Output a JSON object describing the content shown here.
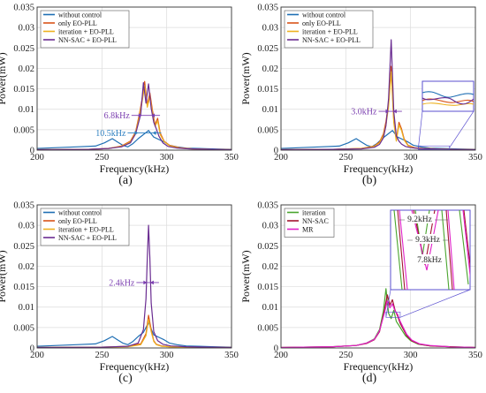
{
  "colors": {
    "without_control": "#1f6fb4",
    "only_eo_pll": "#d95319",
    "iteration_eo_pll": "#edb120",
    "nn_sac_eo_pll": "#6a2c91",
    "iteration": "#4aa52e",
    "nn_sac": "#a2142f",
    "mr": "#e020c8",
    "annotation_purple": "#7b3fb0",
    "annotation_blue": "#2c7fc0",
    "inset_frame": "#5a4fcf"
  },
  "chart_data": [
    {
      "type": "line",
      "panel_label": "(a)",
      "xlabel": "Frequency(kHz)",
      "ylabel": "Power(mW)",
      "xlim": [
        200,
        350
      ],
      "ylim": [
        0,
        0.035
      ],
      "x_ticks": [
        "200",
        "250",
        "300",
        "350"
      ],
      "y_ticks": [
        "0",
        "0.005",
        "0.01",
        "0.015",
        "0.02",
        "0.025",
        "0.03",
        "0.035"
      ],
      "grid": true,
      "legend_position": "top-left",
      "series": [
        {
          "name": "without control",
          "color_key": "without_control",
          "x": [
            200,
            215,
            230,
            245,
            252,
            258,
            262,
            266,
            270,
            274,
            278,
            282,
            286,
            290,
            294,
            298,
            302,
            308,
            315,
            325,
            335,
            350
          ],
          "y": [
            0.0004,
            0.0006,
            0.0008,
            0.001,
            0.0018,
            0.0028,
            0.002,
            0.0012,
            0.0008,
            0.0016,
            0.0028,
            0.0038,
            0.0048,
            0.0032,
            0.0026,
            0.002,
            0.0012,
            0.0008,
            0.0005,
            0.0004,
            0.0003,
            0.0002
          ]
        },
        {
          "name": "only EO-PLL",
          "color_key": "only_eo_pll",
          "x": [
            200,
            240,
            255,
            265,
            272,
            276,
            279,
            281,
            283,
            285,
            287,
            289,
            291,
            293,
            295,
            298,
            302,
            310,
            320,
            335,
            350
          ],
          "y": [
            0.0001,
            0.0002,
            0.0004,
            0.001,
            0.0022,
            0.0045,
            0.009,
            0.0125,
            0.0168,
            0.011,
            0.014,
            0.0098,
            0.0062,
            0.0078,
            0.0042,
            0.0022,
            0.0012,
            0.0006,
            0.0003,
            0.0002,
            0.0001
          ]
        },
        {
          "name": "iteration + EO-PLL",
          "color_key": "iteration_eo_pll",
          "x": [
            200,
            240,
            255,
            265,
            272,
            276,
            279,
            281,
            283,
            285,
            287,
            289,
            291,
            293,
            295,
            298,
            302,
            310,
            320,
            335,
            350
          ],
          "y": [
            0.0001,
            0.0002,
            0.0004,
            0.0009,
            0.002,
            0.0042,
            0.0085,
            0.0118,
            0.0158,
            0.0105,
            0.013,
            0.0092,
            0.0058,
            0.0072,
            0.0038,
            0.0021,
            0.0011,
            0.0005,
            0.0003,
            0.0002,
            0.0001
          ]
        },
        {
          "name": "NN-SAC + EO-PLL",
          "color_key": "nn_sac_eo_pll",
          "x": [
            200,
            240,
            255,
            265,
            272,
            276,
            280,
            282,
            284,
            286,
            288,
            290,
            292,
            294,
            297,
            301,
            308,
            318,
            335,
            350
          ],
          "y": [
            0.0001,
            0.0002,
            0.0004,
            0.0008,
            0.0018,
            0.004,
            0.0088,
            0.0165,
            0.0115,
            0.0162,
            0.0102,
            0.0068,
            0.0052,
            0.0034,
            0.0018,
            0.0009,
            0.0005,
            0.0003,
            0.0002,
            0.0001
          ]
        }
      ],
      "annotations": [
        {
          "text": "6.8kHz",
          "color_key": "annotation_purple",
          "x1": 281,
          "x2": 288,
          "y": 0.0085
        },
        {
          "text": "10.5kHz",
          "color_key": "annotation_blue",
          "x1": 278,
          "x2": 289,
          "y": 0.0042
        }
      ]
    },
    {
      "type": "line",
      "panel_label": "(b)",
      "xlabel": "Frequency(kHz)",
      "ylabel": "Power(mW)",
      "xlim": [
        200,
        350
      ],
      "ylim": [
        0,
        0.035
      ],
      "x_ticks": [
        "200",
        "250",
        "300",
        "350"
      ],
      "y_ticks": [
        "0",
        "0.005",
        "0.01",
        "0.015",
        "0.02",
        "0.025",
        "0.03",
        "0.035"
      ],
      "grid": true,
      "legend_position": "top-left",
      "series": [
        {
          "name": "without control",
          "color_key": "without_control",
          "x": [
            200,
            215,
            230,
            245,
            252,
            258,
            262,
            266,
            270,
            274,
            278,
            282,
            286,
            290,
            294,
            298,
            302,
            308,
            315,
            325,
            335,
            350
          ],
          "y": [
            0.0004,
            0.0006,
            0.0008,
            0.001,
            0.0018,
            0.0028,
            0.002,
            0.0012,
            0.0008,
            0.0016,
            0.0028,
            0.0038,
            0.0048,
            0.0032,
            0.0026,
            0.002,
            0.0012,
            0.0008,
            0.0005,
            0.0004,
            0.0003,
            0.0002
          ]
        },
        {
          "name": "only EO-PLL",
          "color_key": "only_eo_pll",
          "x": [
            200,
            240,
            262,
            272,
            276,
            279,
            281,
            283,
            285,
            287,
            289,
            291,
            293,
            295,
            298,
            303,
            310,
            320,
            335,
            350
          ],
          "y": [
            0.0001,
            0.0002,
            0.0004,
            0.001,
            0.002,
            0.004,
            0.007,
            0.0115,
            0.0205,
            0.0075,
            0.0025,
            0.0068,
            0.0052,
            0.0028,
            0.0012,
            0.0006,
            0.0004,
            0.0003,
            0.0002,
            0.0001
          ]
        },
        {
          "name": "iteration + EO-PLL",
          "color_key": "iteration_eo_pll",
          "x": [
            200,
            240,
            262,
            272,
            276,
            279,
            281,
            283,
            285,
            287,
            289,
            291,
            293,
            295,
            298,
            303,
            310,
            320,
            335,
            350
          ],
          "y": [
            0.0001,
            0.0002,
            0.0004,
            0.0009,
            0.0018,
            0.0036,
            0.0062,
            0.0105,
            0.0192,
            0.0068,
            0.0022,
            0.0062,
            0.0048,
            0.0025,
            0.0011,
            0.0005,
            0.0004,
            0.0003,
            0.0002,
            0.0001
          ]
        },
        {
          "name": "NN-SAC + EO-PLL",
          "color_key": "nn_sac_eo_pll",
          "x": [
            200,
            240,
            262,
            272,
            276,
            279,
            281,
            283,
            285,
            287,
            289,
            291,
            293,
            296,
            300,
            306,
            315,
            330,
            350
          ],
          "y": [
            0.0001,
            0.0002,
            0.0003,
            0.0007,
            0.0014,
            0.003,
            0.006,
            0.0125,
            0.027,
            0.0095,
            0.0035,
            0.0022,
            0.0015,
            0.0009,
            0.0006,
            0.0004,
            0.0003,
            0.0002,
            0.0001
          ]
        }
      ],
      "annotations": [
        {
          "text": "3.0kHz",
          "color_key": "annotation_purple",
          "x1": 283.5,
          "x2": 286.5,
          "y": 0.0095
        }
      ]
    },
    {
      "type": "line",
      "panel_label": "(c)",
      "xlabel": "Frequency(kHz)",
      "ylabel": "Power(mW)",
      "xlim": [
        200,
        350
      ],
      "ylim": [
        0,
        0.035
      ],
      "x_ticks": [
        "200",
        "250",
        "300",
        "350"
      ],
      "y_ticks": [
        "0",
        "0.005",
        "0.01",
        "0.015",
        "0.02",
        "0.025",
        "0.03",
        "0.035"
      ],
      "grid": true,
      "legend_position": "top-left",
      "series": [
        {
          "name": "without control",
          "color_key": "without_control",
          "x": [
            200,
            215,
            230,
            245,
            252,
            258,
            262,
            266,
            270,
            274,
            278,
            282,
            286,
            290,
            294,
            298,
            302,
            308,
            315,
            325,
            335,
            350
          ],
          "y": [
            0.0004,
            0.0006,
            0.0008,
            0.001,
            0.0018,
            0.0028,
            0.002,
            0.0012,
            0.0008,
            0.0016,
            0.0028,
            0.0038,
            0.0062,
            0.0032,
            0.0026,
            0.002,
            0.0012,
            0.0008,
            0.0005,
            0.0004,
            0.0003,
            0.0002
          ]
        },
        {
          "name": "only EO-PLL",
          "color_key": "only_eo_pll",
          "x": [
            200,
            250,
            270,
            280,
            284,
            286,
            288,
            290,
            292,
            296,
            302,
            315,
            350
          ],
          "y": [
            0.0001,
            0.0002,
            0.0004,
            0.001,
            0.0035,
            0.008,
            0.0045,
            0.0018,
            0.0009,
            0.0005,
            0.0003,
            0.0002,
            0.0001
          ]
        },
        {
          "name": "iteration + EO-PLL",
          "color_key": "iteration_eo_pll",
          "x": [
            200,
            250,
            270,
            280,
            284,
            286,
            288,
            290,
            292,
            296,
            302,
            315,
            350
          ],
          "y": [
            0.0001,
            0.0002,
            0.0003,
            0.0008,
            0.003,
            0.007,
            0.004,
            0.0016,
            0.0008,
            0.0004,
            0.0003,
            0.0002,
            0.0001
          ]
        },
        {
          "name": "NN-SAC + EO-PLL",
          "color_key": "nn_sac_eo_pll",
          "x": [
            200,
            250,
            270,
            278,
            282,
            284,
            285,
            286,
            287,
            288,
            290,
            293,
            297,
            303,
            315,
            335,
            350
          ],
          "y": [
            0.0001,
            0.0002,
            0.0004,
            0.0012,
            0.0045,
            0.012,
            0.022,
            0.03,
            0.022,
            0.011,
            0.004,
            0.0018,
            0.0009,
            0.0005,
            0.0003,
            0.0002,
            0.0001
          ]
        }
      ],
      "annotations": [
        {
          "text": "2.4kHz",
          "color_key": "annotation_purple",
          "x1": 284.8,
          "x2": 287.2,
          "y": 0.016
        }
      ]
    },
    {
      "type": "line",
      "panel_label": "(d)",
      "xlabel": "Frequency(kHz)",
      "ylabel": "Power(mW)",
      "xlim": [
        200,
        350
      ],
      "ylim": [
        0,
        0.035
      ],
      "x_ticks": [
        "200",
        "250",
        "300",
        "350"
      ],
      "y_ticks": [
        "0",
        "0.005",
        "0.01",
        "0.015",
        "0.02",
        "0.025",
        "0.03",
        "0.035"
      ],
      "grid": true,
      "legend_position": "top-left",
      "series": [
        {
          "name": "iteration",
          "color_key": "iteration",
          "x": [
            200,
            240,
            258,
            266,
            272,
            276,
            279,
            281,
            283,
            285,
            287,
            289,
            291,
            293,
            296,
            300,
            306,
            315,
            330,
            350
          ],
          "y": [
            0.0001,
            0.0003,
            0.0006,
            0.0012,
            0.0022,
            0.0045,
            0.009,
            0.0145,
            0.0085,
            0.0072,
            0.0092,
            0.0065,
            0.0055,
            0.0045,
            0.003,
            0.0018,
            0.0009,
            0.0005,
            0.0003,
            0.0001
          ]
        },
        {
          "name": "NN-SAC",
          "color_key": "nn_sac",
          "x": [
            200,
            240,
            258,
            266,
            272,
            276,
            280,
            282,
            284,
            286,
            288,
            290,
            292,
            294,
            297,
            301,
            307,
            315,
            330,
            350
          ],
          "y": [
            0.0001,
            0.0003,
            0.0006,
            0.0011,
            0.002,
            0.004,
            0.0095,
            0.013,
            0.0105,
            0.0118,
            0.0092,
            0.0078,
            0.006,
            0.0048,
            0.003,
            0.0017,
            0.0009,
            0.0005,
            0.0003,
            0.0001
          ]
        },
        {
          "name": "MR",
          "color_key": "mr",
          "x": [
            200,
            240,
            258,
            266,
            272,
            276,
            280,
            282,
            284,
            286,
            288,
            290,
            292,
            294,
            297,
            301,
            307,
            315,
            330,
            350
          ],
          "y": [
            0.0001,
            0.0003,
            0.0006,
            0.0012,
            0.0021,
            0.0042,
            0.0088,
            0.0115,
            0.0098,
            0.0108,
            0.009,
            0.0082,
            0.0065,
            0.0052,
            0.0033,
            0.0019,
            0.001,
            0.0006,
            0.0003,
            0.0001
          ]
        }
      ],
      "inset_labels": [
        "9.2kHz",
        "9.3kHz",
        "7.8kHz"
      ]
    }
  ]
}
